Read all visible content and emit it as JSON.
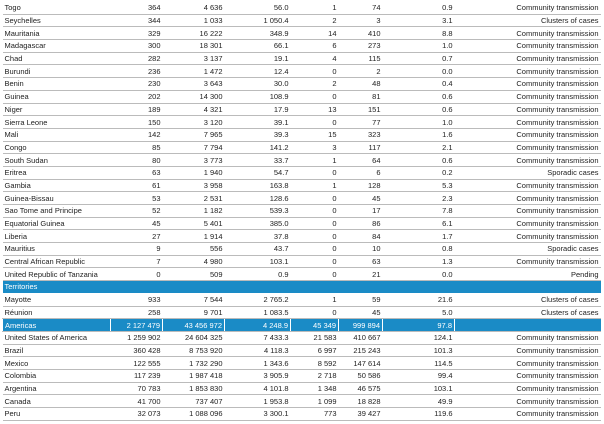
{
  "table": {
    "rows": [
      [
        "Togo",
        "364",
        "4 636",
        "56.0",
        "1",
        "74",
        "0.9",
        "Community transmission"
      ],
      [
        "Seychelles",
        "344",
        "1 033",
        "1 050.4",
        "2",
        "3",
        "3.1",
        "Clusters of cases"
      ],
      [
        "Mauritania",
        "329",
        "16 222",
        "348.9",
        "14",
        "410",
        "8.8",
        "Community transmission"
      ],
      [
        "Madagascar",
        "300",
        "18 301",
        "66.1",
        "6",
        "273",
        "1.0",
        "Community transmission"
      ],
      [
        "Chad",
        "282",
        "3 137",
        "19.1",
        "4",
        "115",
        "0.7",
        "Community transmission"
      ],
      [
        "Burundi",
        "236",
        "1 472",
        "12.4",
        "0",
        "2",
        "0.0",
        "Community transmission"
      ],
      [
        "Benin",
        "230",
        "3 643",
        "30.0",
        "2",
        "48",
        "0.4",
        "Community transmission"
      ],
      [
        "Guinea",
        "202",
        "14 300",
        "108.9",
        "0",
        "81",
        "0.6",
        "Community transmission"
      ],
      [
        "Niger",
        "189",
        "4 321",
        "17.9",
        "13",
        "151",
        "0.6",
        "Community transmission"
      ],
      [
        "Sierra Leone",
        "150",
        "3 120",
        "39.1",
        "0",
        "77",
        "1.0",
        "Community transmission"
      ],
      [
        "Mali",
        "142",
        "7 965",
        "39.3",
        "15",
        "323",
        "1.6",
        "Community transmission"
      ],
      [
        "Congo",
        "85",
        "7 794",
        "141.2",
        "3",
        "117",
        "2.1",
        "Community transmission"
      ],
      [
        "South Sudan",
        "80",
        "3 773",
        "33.7",
        "1",
        "64",
        "0.6",
        "Community transmission"
      ],
      [
        "Eritrea",
        "63",
        "1 940",
        "54.7",
        "0",
        "6",
        "0.2",
        "Sporadic cases"
      ],
      [
        "Gambia",
        "61",
        "3 958",
        "163.8",
        "1",
        "128",
        "5.3",
        "Community transmission"
      ],
      [
        "Guinea-Bissau",
        "53",
        "2 531",
        "128.6",
        "0",
        "45",
        "2.3",
        "Community transmission"
      ],
      [
        "Sao Tome and Principe",
        "52",
        "1 182",
        "539.3",
        "0",
        "17",
        "7.8",
        "Community transmission"
      ],
      [
        "Equatorial Guinea",
        "45",
        "5 401",
        "385.0",
        "0",
        "86",
        "6.1",
        "Community transmission"
      ],
      [
        "Liberia",
        "27",
        "1 914",
        "37.8",
        "0",
        "84",
        "1.7",
        "Community transmission"
      ],
      [
        "Mauritius",
        "9",
        "556",
        "43.7",
        "0",
        "10",
        "0.8",
        "Sporadic cases"
      ],
      [
        "Central African Republic",
        "7",
        "4 980",
        "103.1",
        "0",
        "63",
        "1.3",
        "Community transmission"
      ],
      [
        "United Republic of Tanzania",
        "0",
        "509",
        "0.9",
        "0",
        "21",
        "0.0",
        "Pending"
      ],
      [
        "Territories"
      ],
      [
        "Mayotte",
        "933",
        "7 544",
        "2 765.2",
        "1",
        "59",
        "21.6",
        "Clusters of cases"
      ],
      [
        "Réunion",
        "258",
        "9 701",
        "1 083.5",
        "0",
        "45",
        "5.0",
        "Clusters of cases"
      ],
      [
        "Americas",
        "2 127 479",
        "43 456 972",
        "4 248.9",
        "45 349",
        "999 894",
        "97.8"
      ],
      [
        "United States of America",
        "1 259 902",
        "24 604 325",
        "7 433.3",
        "21 583",
        "410 667",
        "124.1",
        "Community transmission"
      ],
      [
        "Brazil",
        "360 428",
        "8 753 920",
        "4 118.3",
        "6 997",
        "215 243",
        "101.3",
        "Community transmission"
      ],
      [
        "Mexico",
        "122 555",
        "1 732 290",
        "1 343.6",
        "8 592",
        "147 614",
        "114.5",
        "Community transmission"
      ],
      [
        "Colombia",
        "117 239",
        "1 987 418",
        "3 905.9",
        "2 718",
        "50 586",
        "99.4",
        "Community transmission"
      ],
      [
        "Argentina",
        "70 783",
        "1 853 830",
        "4 101.8",
        "1 348",
        "46 575",
        "103.1",
        "Community transmission"
      ],
      [
        "Canada",
        "41 700",
        "737 407",
        "1 953.8",
        "1 099",
        "18 828",
        "49.9",
        "Community transmission"
      ],
      [
        "Peru",
        "32 073",
        "1 088 096",
        "3 300.1",
        "773",
        "39 427",
        "119.6",
        "Community transmission"
      ]
    ]
  }
}
